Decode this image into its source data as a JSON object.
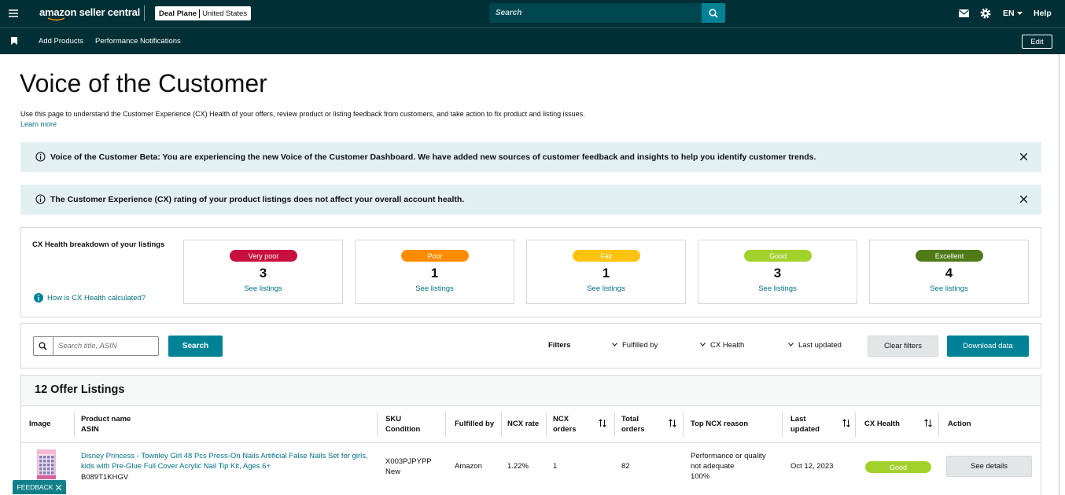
{
  "nav": {
    "brand": "amazon seller central",
    "store": "Deal Plane",
    "region": "United States",
    "search": "Search",
    "language": "EN",
    "help": "Help",
    "links": [
      "Add Products",
      "Performance Notifications"
    ],
    "edit": "Edit"
  },
  "header": {
    "title": "Voice of the Customer",
    "description": "Use this page to understand the Customer Experience (CX) Health of your offers, review product or listing feedback from customers, and take action to fix product and listing issues.",
    "learn_more": "Learn more"
  },
  "banners": [
    "Voice of the Customer Beta: You are experiencing the new Voice of the Customer Dashboard. We have added new sources of customer feedback and insights to help you identify customer trends.",
    "The Customer Experience (CX) rating of your product listings does not affect your overall account health."
  ],
  "cx_health": {
    "title": "CX Health breakdown of your listings",
    "help_link": "How is CX Health calculated?",
    "cards": [
      {
        "rating": "Very poor",
        "count": 3,
        "link": "See listings",
        "color": "#c8103e"
      },
      {
        "rating": "Poor",
        "count": 1,
        "link": "See listings",
        "color": "#ff8c00"
      },
      {
        "rating": "Fair",
        "count": 1,
        "link": "See listings",
        "color": "#ffc20e"
      },
      {
        "rating": "Good",
        "count": 3,
        "link": "See listings",
        "color": "#a3d12c"
      },
      {
        "rating": "Excellent",
        "count": 4,
        "link": "See listings",
        "color": "#4f7a17"
      }
    ]
  },
  "toolbar": {
    "search_placeholder": "Search title, ASIN",
    "search_button": "Search",
    "filters_label": "Filters",
    "filters": [
      "Fulfilled by",
      "CX Health",
      "Last updated"
    ],
    "clear": "Clear filters",
    "download": "Download data"
  },
  "table": {
    "title": "12 Offer Listings",
    "headers": [
      [
        "Image"
      ],
      [
        "Product name",
        "ASIN"
      ],
      [
        "SKU",
        "Condition"
      ],
      [
        "Fulfilled by"
      ],
      [
        "NCX rate"
      ],
      [
        "NCX",
        "orders"
      ],
      [
        "Total",
        "orders"
      ],
      [
        "Top NCX reason"
      ],
      [
        "Last",
        "updated"
      ],
      [
        "CX Health"
      ],
      [
        "Action"
      ]
    ],
    "rows": [
      {
        "product_name": "Disney Princess - Townley Girl 48 Pcs Press-On Nails Artificial False Nails Set for girls, kids with Pre-Glue Full Cover Acrylic Nail Tip Kit, Ages 6+",
        "asin": "B089T1KHGV",
        "sku": "X003PJPYPP",
        "condition": "New",
        "fulfilled_by": "Amazon",
        "ncx_rate": "1.22%",
        "ncx_orders": 1,
        "total_orders": 82,
        "top_ncx_reason": "Performance or quality not adequate",
        "reason_share": "100%",
        "last_updated": "Oct 12, 2023",
        "cx_health": "Good",
        "action": "See details"
      }
    ]
  },
  "feedback": "FEEDBACK"
}
